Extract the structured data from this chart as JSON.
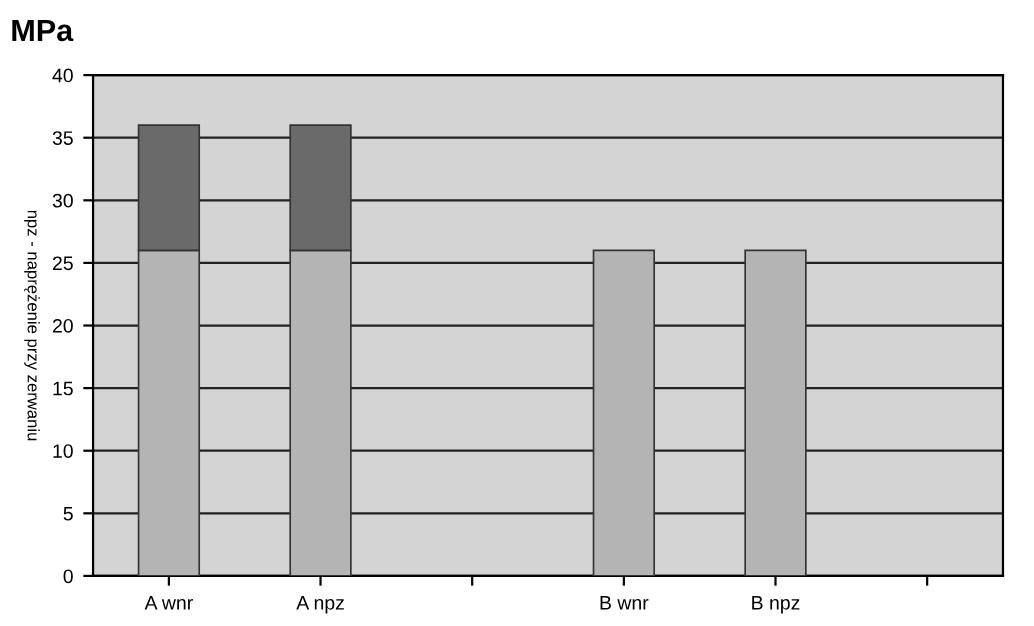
{
  "chart_data": {
    "type": "bar",
    "stacked": true,
    "title": "MPa",
    "ylabel": "npz - naprężenie przy zerwaniu",
    "categories": [
      "A wnr",
      "A npz",
      null,
      "B wnr",
      "B npz",
      null
    ],
    "series": [
      {
        "color": "#b4b4b4",
        "values": [
          26,
          26,
          null,
          26,
          26,
          null
        ]
      },
      {
        "color": "#6a6a6a",
        "values": [
          10,
          10,
          null,
          null,
          null,
          null
        ]
      }
    ],
    "ylim": [
      0,
      40
    ],
    "yticks": [
      0,
      5,
      10,
      15,
      20,
      25,
      30,
      35,
      40
    ],
    "grid": "y"
  }
}
